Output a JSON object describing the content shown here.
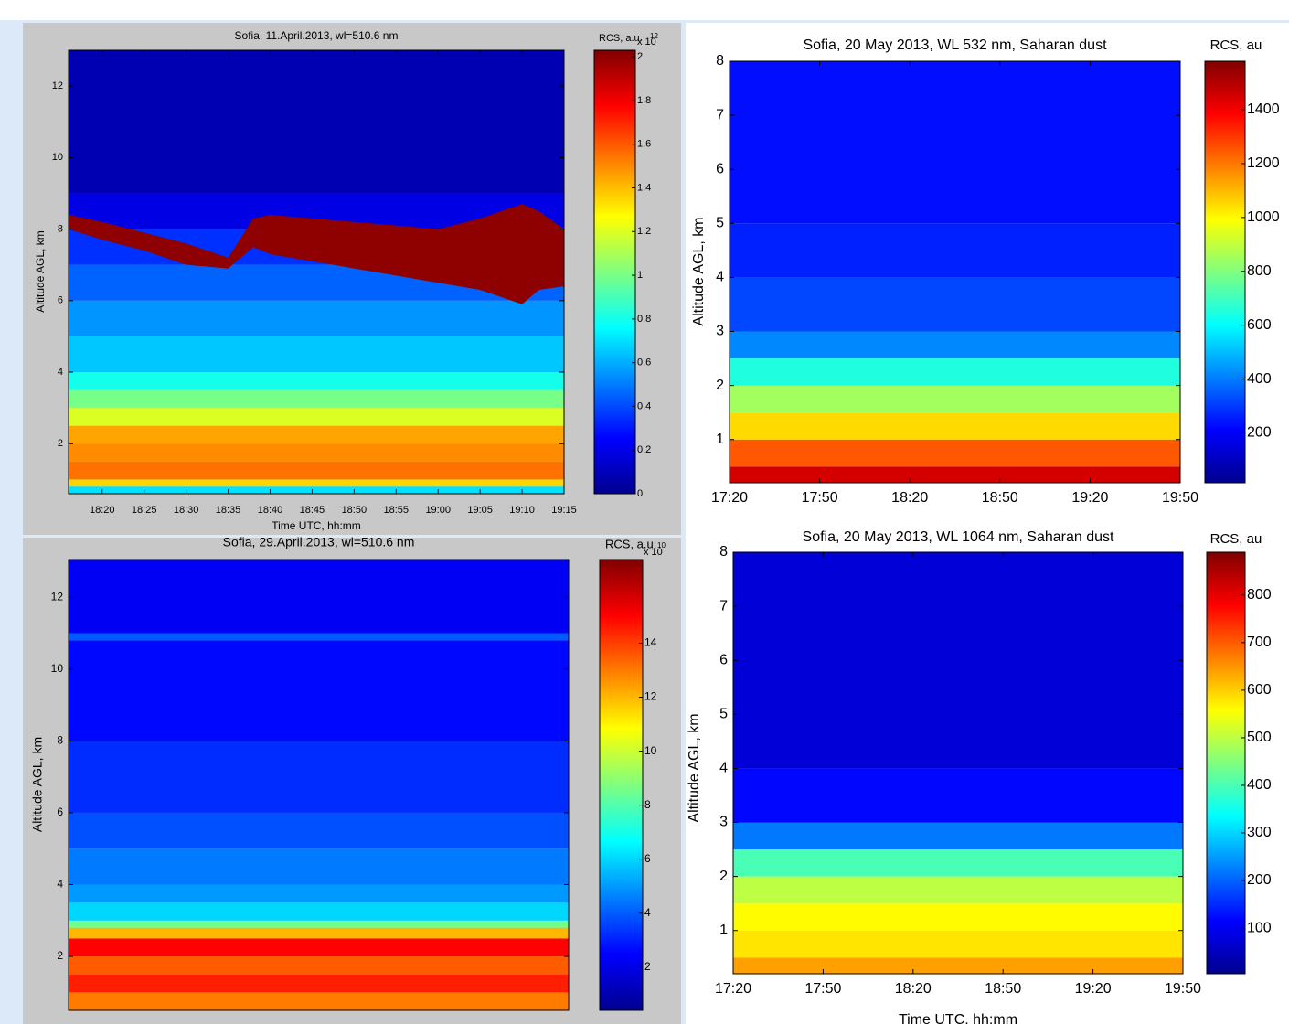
{
  "chart_data": [
    {
      "type": "heatmap",
      "title": "Sofia, 11.April.2013, wl=510.6 nm",
      "xlabel": "Time UTC, hh:mm",
      "ylabel": "Altitude AGL, km",
      "xlim": [
        1096,
        1155
      ],
      "xticks": [
        {
          "value": 1100,
          "label": "18:20"
        },
        {
          "value": 1105,
          "label": "18:25"
        },
        {
          "value": 1110,
          "label": "18:30"
        },
        {
          "value": 1115,
          "label": "18:35"
        },
        {
          "value": 1120,
          "label": "18:40"
        },
        {
          "value": 1125,
          "label": "18:45"
        },
        {
          "value": 1130,
          "label": "18:50"
        },
        {
          "value": 1135,
          "label": "18:55"
        },
        {
          "value": 1140,
          "label": "19:00"
        },
        {
          "value": 1145,
          "label": "19:05"
        },
        {
          "value": 1150,
          "label": "19:10"
        },
        {
          "value": 1155,
          "label": "19:15"
        }
      ],
      "ylim": [
        0.6,
        13
      ],
      "yticks": [
        2,
        4,
        6,
        8,
        10,
        12
      ],
      "altitude_bins": [
        0.6,
        0.8,
        1.0,
        1.5,
        2.0,
        2.5,
        3.0,
        3.5,
        4.0,
        5.0,
        6.0,
        7.0,
        8.0,
        9.0,
        13
      ],
      "values": [
        0.7,
        1.35,
        1.55,
        1.5,
        1.45,
        1.2,
        1.0,
        0.8,
        0.65,
        0.55,
        0.45,
        0.35,
        0.2,
        0.1
      ],
      "cloud": {
        "x": [
          1096,
          1100,
          1105,
          1110,
          1115,
          1118,
          1120,
          1125,
          1130,
          1135,
          1140,
          1145,
          1150,
          1152,
          1155
        ],
        "top": [
          8.4,
          8.2,
          7.9,
          7.6,
          7.2,
          8.3,
          8.4,
          8.3,
          8.2,
          8.1,
          8.0,
          8.3,
          8.7,
          8.5,
          8.0
        ],
        "bottom": [
          8.0,
          7.7,
          7.4,
          7.0,
          6.9,
          7.5,
          7.3,
          7.1,
          6.9,
          6.7,
          6.5,
          6.3,
          5.9,
          6.3,
          6.4
        ],
        "value": 2
      },
      "colorbar": {
        "title": "RCS, a.u.",
        "scale": "x 10",
        "exponent": "12",
        "lim": [
          0,
          2.03
        ],
        "ticks": [
          0,
          0.2,
          0.4,
          0.6,
          0.8,
          1,
          1.2,
          1.4,
          1.6,
          1.8,
          2
        ]
      }
    },
    {
      "type": "heatmap",
      "title": "Sofia, 20 May 2013, WL 532 nm, Saharan dust",
      "ylabel": "Altitude AGL, km",
      "xlim": [
        1040,
        1190
      ],
      "xticks": [
        {
          "value": 1040,
          "label": "17:20"
        },
        {
          "value": 1070,
          "label": "17:50"
        },
        {
          "value": 1100,
          "label": "18:20"
        },
        {
          "value": 1130,
          "label": "18:50"
        },
        {
          "value": 1160,
          "label": "19:20"
        },
        {
          "value": 1190,
          "label": "19:50"
        }
      ],
      "ylim": [
        0.2,
        8
      ],
      "yticks": [
        1,
        2,
        3,
        4,
        5,
        6,
        7,
        8
      ],
      "altitude_bins": [
        0.2,
        0.5,
        1.0,
        1.5,
        2.0,
        2.5,
        3.0,
        4.0,
        5.0,
        8.0
      ],
      "values": [
        1450,
        1250,
        1050,
        850,
        650,
        420,
        320,
        260,
        230
      ],
      "colorbar": {
        "title": "RCS, au",
        "lim": [
          15,
          1580
        ],
        "ticks": [
          200,
          400,
          600,
          800,
          1000,
          1200,
          1400
        ]
      }
    },
    {
      "type": "heatmap",
      "title": "Sofia, 29.April.2013, wl=510.6 nm",
      "ylabel": "Altitude AGL, km",
      "ylim": [
        0.5,
        13.05
      ],
      "yticks": [
        2,
        4,
        6,
        8,
        10,
        12
      ],
      "altitude_bins": [
        0.5,
        1.0,
        1.5,
        2.0,
        2.5,
        2.8,
        3.0,
        3.5,
        4,
        5,
        6,
        8,
        10.8,
        11.0,
        13.05
      ],
      "values": [
        13,
        14.5,
        13.5,
        15,
        12,
        8.5,
        6,
        5,
        4.5,
        3.8,
        3.2,
        2.6,
        4,
        2.3
      ],
      "colorbar": {
        "title": "RCS, a.u.",
        "scale": "x 10",
        "exponent": "10",
        "lim": [
          0.4,
          17.1
        ],
        "ticks": [
          2,
          4,
          6,
          8,
          10,
          12,
          14
        ]
      }
    },
    {
      "type": "heatmap",
      "title": "Sofia, 20 May 2013, WL 1064 nm, Saharan dust",
      "xlabel": "Time UTC, hh:mm",
      "ylabel": "Altitude AGL, km",
      "xlim": [
        1040,
        1190
      ],
      "xticks": [
        {
          "value": 1040,
          "label": "17:20"
        },
        {
          "value": 1070,
          "label": "17:50"
        },
        {
          "value": 1100,
          "label": "18:20"
        },
        {
          "value": 1130,
          "label": "18:50"
        },
        {
          "value": 1160,
          "label": "19:20"
        },
        {
          "value": 1190,
          "label": "19:50"
        }
      ],
      "ylim": [
        0.2,
        8
      ],
      "yticks": [
        1,
        2,
        3,
        4,
        5,
        6,
        7,
        8
      ],
      "altitude_bins": [
        0.2,
        0.5,
        1.0,
        1.5,
        2.0,
        2.5,
        3.0,
        4,
        8
      ],
      "values": [
        640,
        580,
        560,
        500,
        400,
        220,
        120,
        80
      ],
      "colorbar": {
        "title": "RCS, au",
        "lim": [
          4,
          890
        ],
        "ticks": [
          100,
          200,
          300,
          400,
          500,
          600,
          700,
          800
        ]
      }
    }
  ]
}
